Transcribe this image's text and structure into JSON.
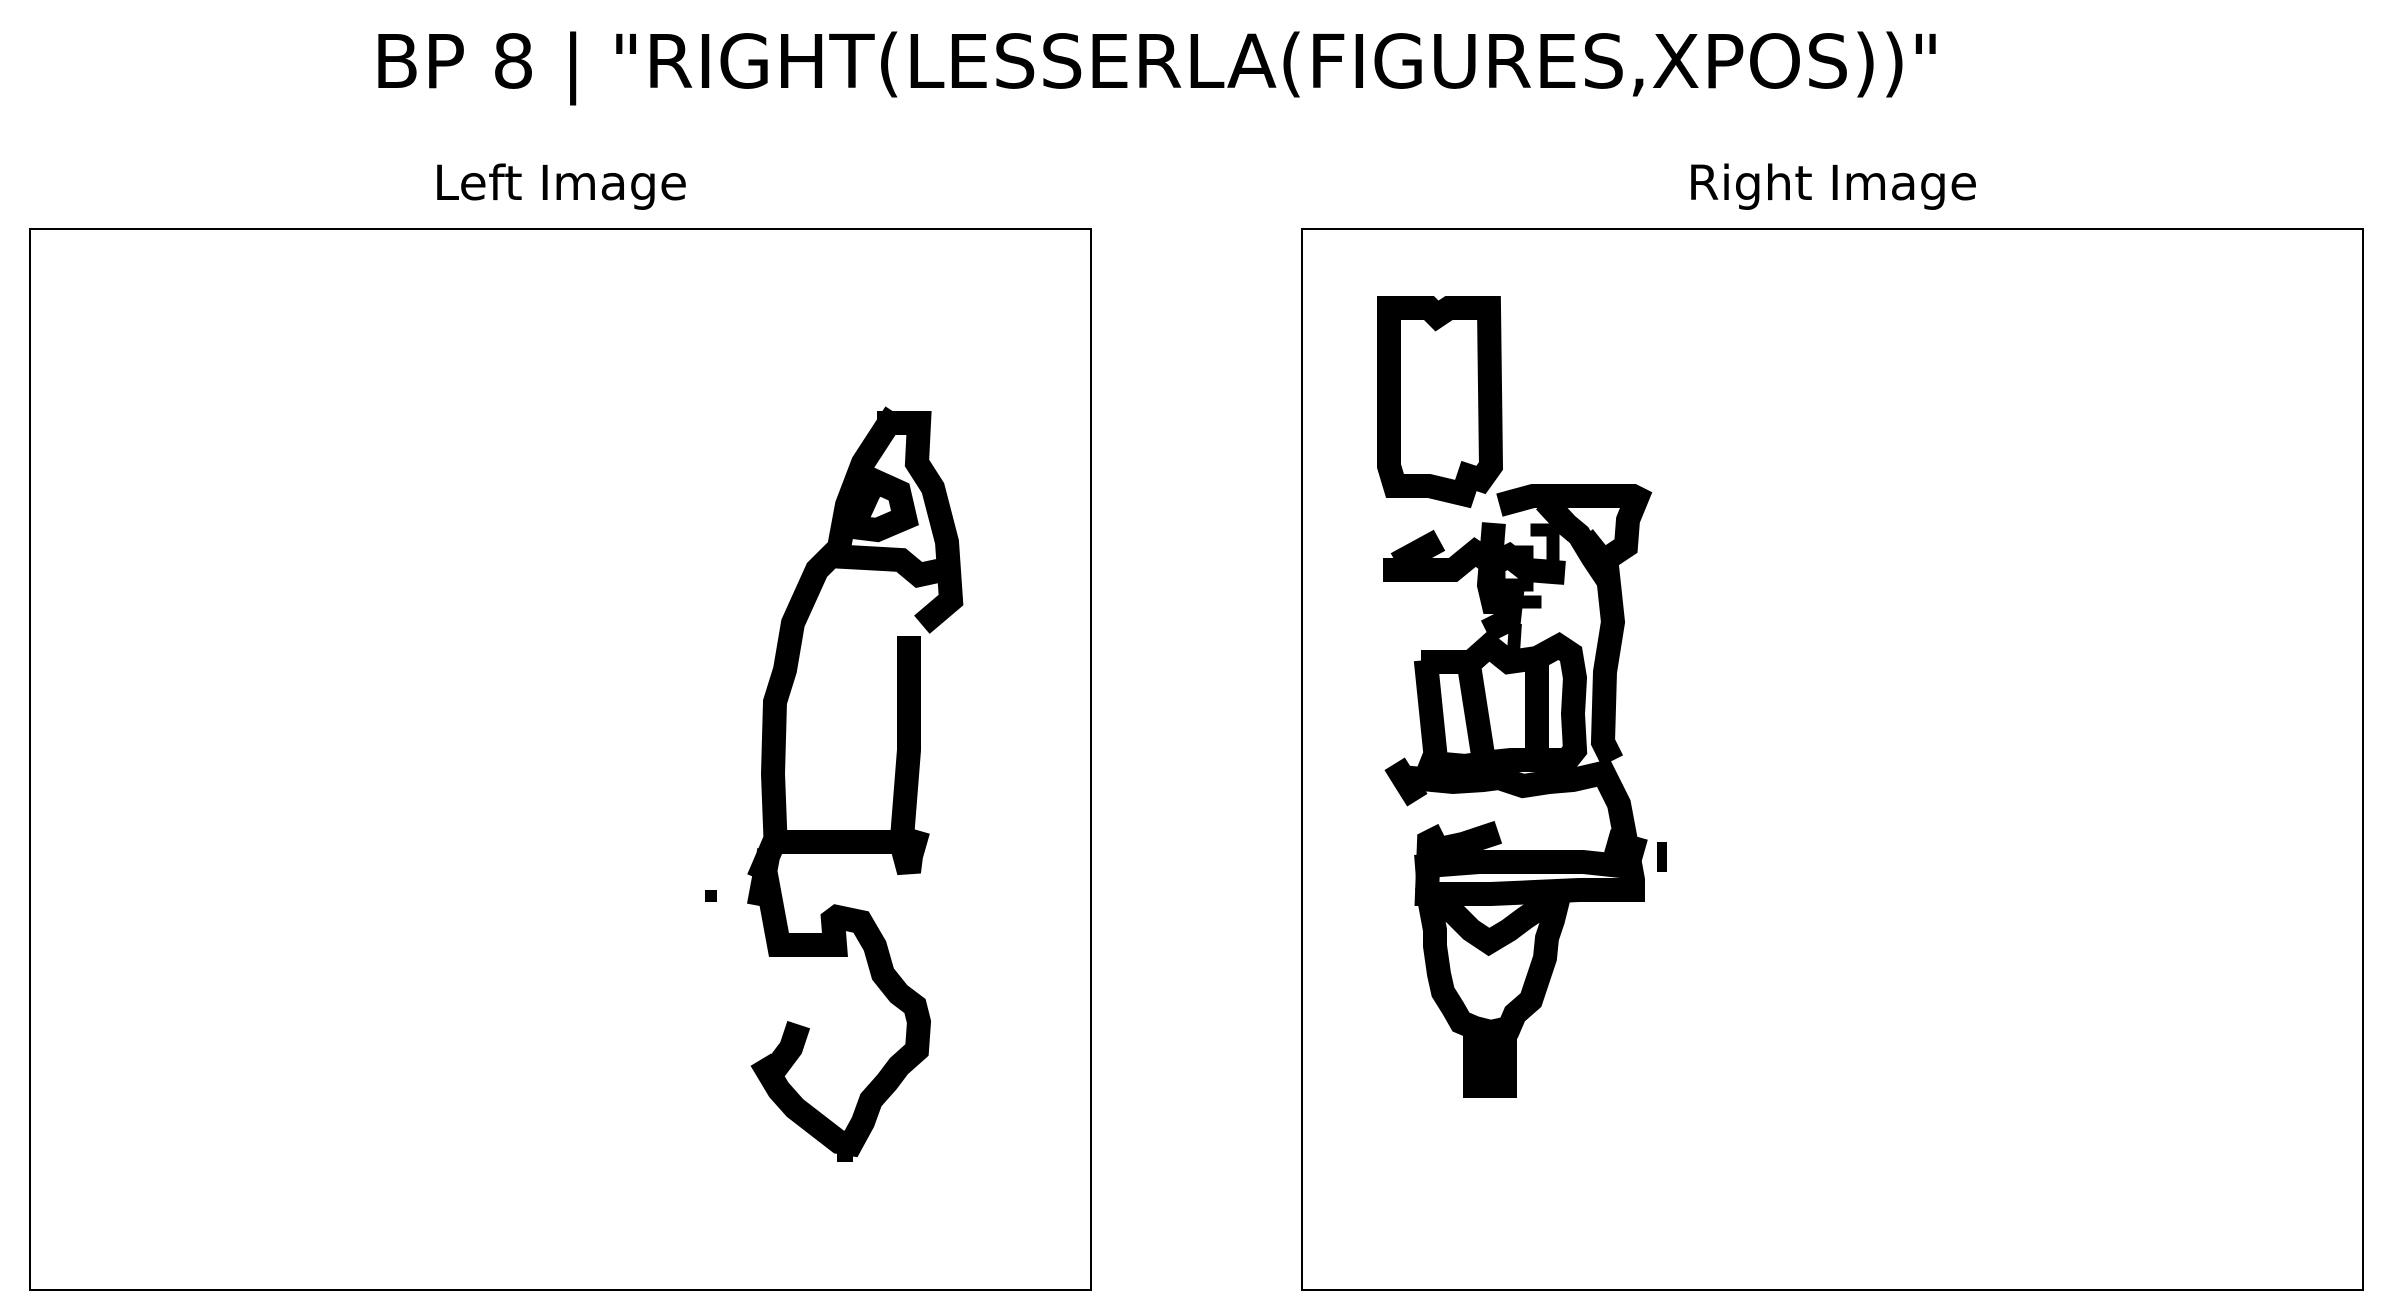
{
  "figure": {
    "title": "BP 8 | \"RIGHT(LESSERLA(FIGURES,XPOS))\""
  },
  "panels": {
    "left": {
      "title": "Left Image"
    },
    "right": {
      "title": "Right Image"
    }
  },
  "colors": {
    "ink": "#000000",
    "background": "#ffffff"
  }
}
